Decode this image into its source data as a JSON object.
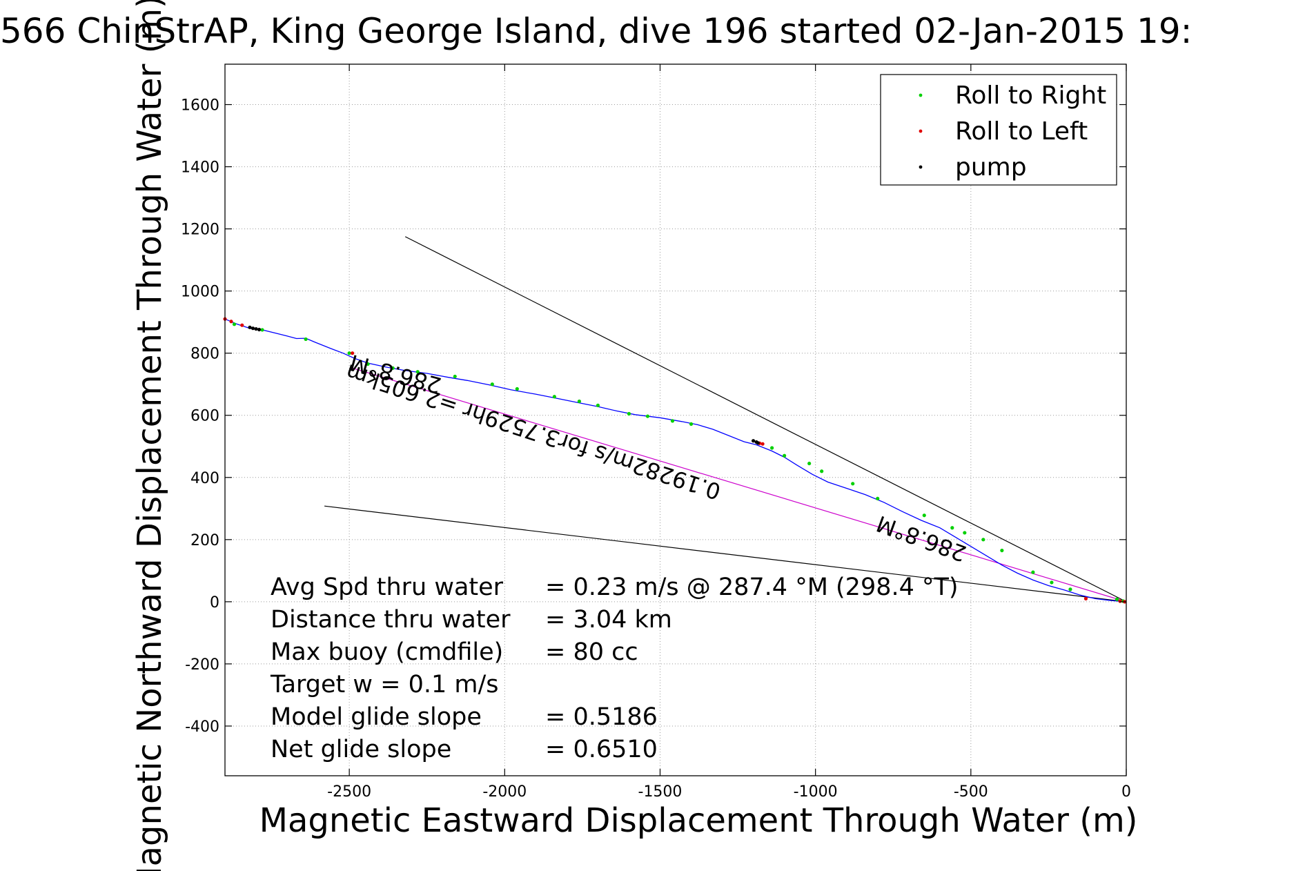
{
  "chart_data": {
    "type": "line",
    "title": "566 ChinStrAP, King George Island, dive 196 started 02-Jan-2015 19:",
    "xlabel": "Magnetic Eastward Displacement Through Water (m)",
    "ylabel": "Magnetic Northward Displacement Through Water (m)",
    "xlim": [
      -2900,
      0
    ],
    "ylim": [
      -560,
      1730
    ],
    "xticks": [
      -2500,
      -2000,
      -1500,
      -1000,
      -500,
      0
    ],
    "yticks": [
      -400,
      -200,
      0,
      200,
      400,
      600,
      800,
      1000,
      1200,
      1400,
      1600
    ],
    "grid": true,
    "legend_position": "top-right",
    "legend": [
      {
        "label": "Roll to Right",
        "color": "#00d000"
      },
      {
        "label": "Roll to Left",
        "color": "#e00000"
      },
      {
        "label": "pump",
        "color": "#000000"
      }
    ],
    "track": {
      "color": "#0000ff",
      "x": [
        -2900,
        -2860,
        -2820,
        -2780,
        -2740,
        -2700,
        -2670,
        -2640,
        -2610,
        -2560,
        -2520,
        -2480,
        -2440,
        -2380,
        -2320,
        -2250,
        -2180,
        -2120,
        -2050,
        -1980,
        -1900,
        -1830,
        -1760,
        -1700,
        -1640,
        -1580,
        -1500,
        -1430,
        -1380,
        -1330,
        -1280,
        -1230,
        -1190,
        -1140,
        -1100,
        -1060,
        -1010,
        -960,
        -900,
        -840,
        -780,
        -720,
        -660,
        -600,
        -550,
        -500,
        -450,
        -400,
        -350,
        -300,
        -250,
        -200,
        -150,
        -100,
        -50,
        0
      ],
      "y": [
        910,
        893,
        880,
        875,
        865,
        855,
        847,
        848,
        835,
        815,
        800,
        782,
        768,
        755,
        744,
        735,
        722,
        712,
        698,
        682,
        668,
        654,
        640,
        628,
        614,
        602,
        592,
        580,
        570,
        555,
        535,
        515,
        505,
        485,
        465,
        440,
        410,
        385,
        365,
        345,
        320,
        290,
        262,
        238,
        208,
        178,
        148,
        118,
        92,
        70,
        52,
        38,
        22,
        10,
        4,
        0
      ]
    },
    "roll_right_x": [
      -2870,
      -2780,
      -2640,
      -2500,
      -2440,
      -2360,
      -2280,
      -2160,
      -2040,
      -1960,
      -1840,
      -1760,
      -1700,
      -1600,
      -1540,
      -1460,
      -1400,
      -1140,
      -1100,
      -1020,
      -980,
      -880,
      -800,
      -650,
      -560,
      -520,
      -460,
      -400,
      -300,
      -240,
      -180,
      -30,
      -10
    ],
    "roll_right_y": [
      893,
      875,
      845,
      800,
      765,
      752,
      740,
      725,
      700,
      685,
      660,
      645,
      632,
      605,
      597,
      582,
      572,
      495,
      470,
      445,
      420,
      380,
      332,
      278,
      238,
      222,
      200,
      165,
      95,
      62,
      40,
      8,
      2
    ],
    "roll_left_x": [
      -2900,
      -2880,
      -2845,
      -2490,
      -1180,
      -1170,
      -130,
      -20,
      -5
    ],
    "roll_left_y": [
      910,
      902,
      890,
      800,
      510,
      508,
      10,
      2,
      0
    ],
    "pump_x": [
      -2820,
      -2810,
      -2800,
      -2790,
      -1200,
      -1190,
      -1185
    ],
    "pump_y": [
      883,
      880,
      878,
      876,
      518,
      514,
      511
    ],
    "heading_lines": [
      {
        "x": [
          0,
          -2320
        ],
        "y": [
          0,
          1175
        ],
        "color": "#000000"
      },
      {
        "x": [
          0,
          -2580
        ],
        "y": [
          0,
          308
        ],
        "color": "#000000"
      },
      {
        "x": [
          0,
          -2490
        ],
        "y": [
          0,
          752
        ],
        "color": "#cc00cc"
      }
    ],
    "annotations": [
      {
        "text": "286.8°M",
        "x": -2200,
        "y": 718,
        "rotate": 195
      },
      {
        "text": "0.19282m/s for3.7529hr =2.605km",
        "x": -1300,
        "y": 375,
        "rotate": 198
      },
      {
        "text": "286.8°M",
        "x": -510,
        "y": 175,
        "rotate": 200
      }
    ],
    "stats": [
      {
        "label": "Avg Spd thru water",
        "value": "=  0.23 m/s @ 287.4 °M (298.4 °T)"
      },
      {
        "label": "Distance thru water",
        "value": "=  3.04 km"
      },
      {
        "label": "Max buoy (cmdfile)",
        "value": "= 80 cc"
      },
      {
        "label": "Target w    = 0.1 m/s",
        "value": ""
      },
      {
        "label": "Model glide slope",
        "value": "= 0.5186"
      },
      {
        "label": "Net glide slope",
        "value": "= 0.6510"
      }
    ]
  }
}
